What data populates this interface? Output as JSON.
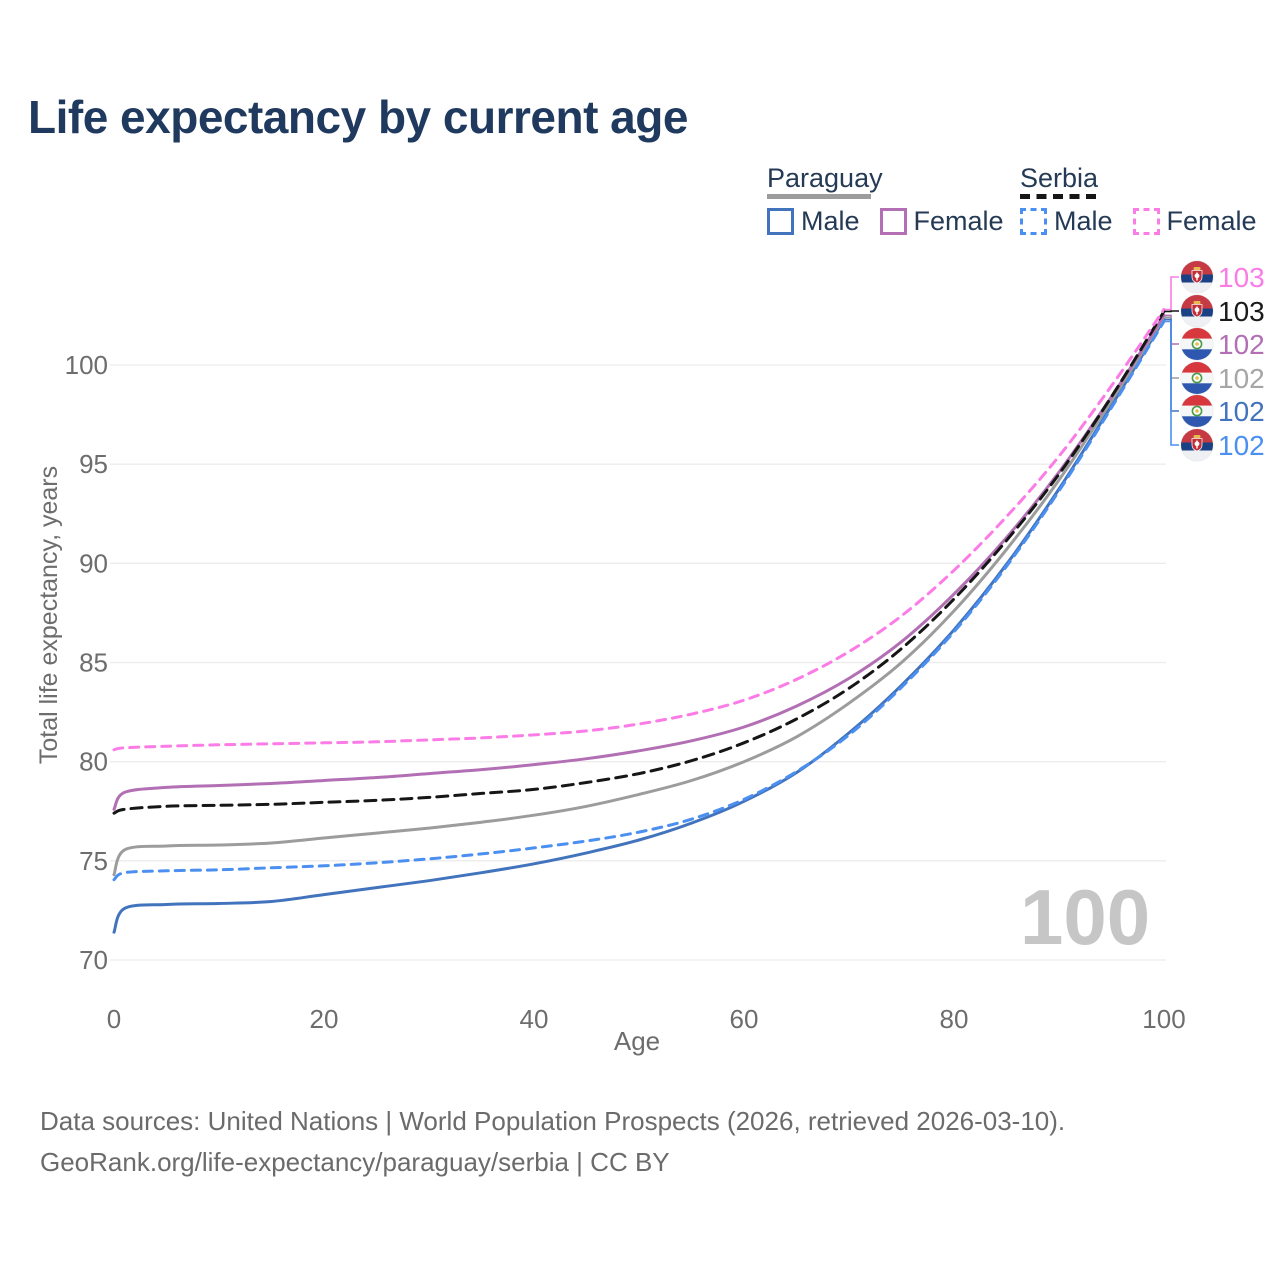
{
  "title": "Life expectancy by current age",
  "watermark": "100",
  "colors": {
    "title_text": "#1f3a5e",
    "legend_text": "#243a55",
    "axis_text": "#6d6d6d",
    "gridline": "#ececec",
    "watermark": "#c6c6c6",
    "footer_text": "#6b6b6b",
    "paraguay_male": "#4273bd",
    "paraguay_female": "#b26fb4",
    "paraguay_both": "#9c9c9c",
    "serbia_male": "#4b8ff0",
    "serbia_female": "#fb7ce6",
    "serbia_both": "#161616"
  },
  "legend": {
    "groups": [
      {
        "label": "Paraguay",
        "line_style": "solid",
        "line_color": "#9c9c9c",
        "items": [
          {
            "label": "Male",
            "color": "#4273bd",
            "dash": false
          },
          {
            "label": "Female",
            "color": "#b26fb4",
            "dash": false
          }
        ]
      },
      {
        "label": "Serbia",
        "line_style": "dashed",
        "line_color": "#161616",
        "items": [
          {
            "label": "Male",
            "color": "#4b8ff0",
            "dash": true
          },
          {
            "label": "Female",
            "color": "#fb7ce6",
            "dash": true
          }
        ]
      }
    ]
  },
  "chart_data": {
    "type": "line",
    "title": "Life expectancy by current age",
    "xlabel": "Age",
    "ylabel": "Total life expectancy, years",
    "xlim": [
      0,
      100
    ],
    "ylim": [
      70,
      103
    ],
    "x_ticks": [
      0,
      20,
      40,
      60,
      80,
      100
    ],
    "y_ticks": [
      70,
      75,
      80,
      85,
      90,
      95,
      100
    ],
    "grid": true,
    "legend_position": "top-right",
    "x": [
      0,
      1,
      5,
      10,
      15,
      20,
      25,
      30,
      35,
      40,
      45,
      50,
      55,
      60,
      65,
      70,
      75,
      80,
      85,
      90,
      95,
      100
    ],
    "series": [
      {
        "name": "Paraguay Male",
        "country": "Paraguay",
        "sex": "Male",
        "color": "#4273bd",
        "dash": false,
        "values": [
          71.4,
          72.6,
          72.8,
          72.85,
          72.95,
          73.3,
          73.65,
          74.0,
          74.4,
          74.85,
          75.4,
          76.05,
          76.9,
          78.0,
          79.45,
          81.45,
          83.85,
          86.65,
          89.95,
          93.75,
          97.95,
          102.3
        ]
      },
      {
        "name": "Paraguay Both sexes",
        "country": "Paraguay",
        "sex": "Both",
        "color": "#9c9c9c",
        "dash": false,
        "values": [
          74.3,
          75.55,
          75.75,
          75.8,
          75.9,
          76.15,
          76.4,
          76.65,
          76.95,
          77.3,
          77.75,
          78.35,
          79.05,
          80.0,
          81.25,
          82.95,
          85.0,
          87.6,
          90.7,
          94.2,
          98.2,
          102.4
        ]
      },
      {
        "name": "Paraguay Female",
        "country": "Paraguay",
        "sex": "Female",
        "color": "#b26fb4",
        "dash": false,
        "values": [
          77.6,
          78.45,
          78.7,
          78.8,
          78.9,
          79.05,
          79.2,
          79.4,
          79.6,
          79.85,
          80.15,
          80.55,
          81.05,
          81.75,
          82.8,
          84.2,
          86.05,
          88.45,
          91.3,
          94.6,
          98.4,
          102.5
        ]
      },
      {
        "name": "Serbia Male",
        "country": "Serbia",
        "sex": "Male",
        "color": "#4b8ff0",
        "dash": true,
        "values": [
          74.05,
          74.4,
          74.5,
          74.55,
          74.65,
          74.75,
          74.9,
          75.1,
          75.35,
          75.65,
          76.0,
          76.45,
          77.1,
          78.1,
          79.5,
          81.35,
          83.75,
          86.55,
          89.85,
          93.65,
          97.85,
          102.2
        ]
      },
      {
        "name": "Serbia Both sexes",
        "country": "Serbia",
        "sex": "Both",
        "color": "#161616",
        "dash": true,
        "values": [
          77.4,
          77.6,
          77.75,
          77.8,
          77.85,
          77.95,
          78.05,
          78.2,
          78.4,
          78.6,
          78.95,
          79.4,
          80.05,
          80.95,
          82.15,
          83.7,
          85.7,
          88.2,
          91.15,
          94.5,
          98.4,
          102.7
        ]
      },
      {
        "name": "Serbia Female",
        "country": "Serbia",
        "sex": "Female",
        "color": "#fb7ce6",
        "dash": true,
        "values": [
          80.6,
          80.7,
          80.78,
          80.85,
          80.9,
          80.95,
          81.0,
          81.1,
          81.2,
          81.35,
          81.55,
          81.9,
          82.4,
          83.1,
          84.15,
          85.55,
          87.35,
          89.65,
          92.35,
          95.4,
          98.95,
          102.8
        ]
      }
    ],
    "end_labels": [
      {
        "series": "Serbia Female",
        "value": "103",
        "color": "#fb7ce6",
        "flag": "serbia"
      },
      {
        "series": "Serbia Both sexes",
        "value": "103",
        "color": "#1a1a1a",
        "flag": "serbia"
      },
      {
        "series": "Paraguay Female",
        "value": "102",
        "color": "#b26fb4",
        "flag": "paraguay"
      },
      {
        "series": "Paraguay Both sexes",
        "value": "102",
        "color": "#a6a6a6",
        "flag": "paraguay"
      },
      {
        "series": "Paraguay Male",
        "value": "102",
        "color": "#4273bd",
        "flag": "paraguay"
      },
      {
        "series": "Serbia Male",
        "value": "102",
        "color": "#4b8ff0",
        "flag": "serbia"
      }
    ]
  },
  "footer": {
    "line1": "Data sources: United Nations | World Population Prospects (2026, retrieved 2026-03-10).",
    "line2": "GeoRank.org/life-expectancy/paraguay/serbia | CC BY"
  }
}
